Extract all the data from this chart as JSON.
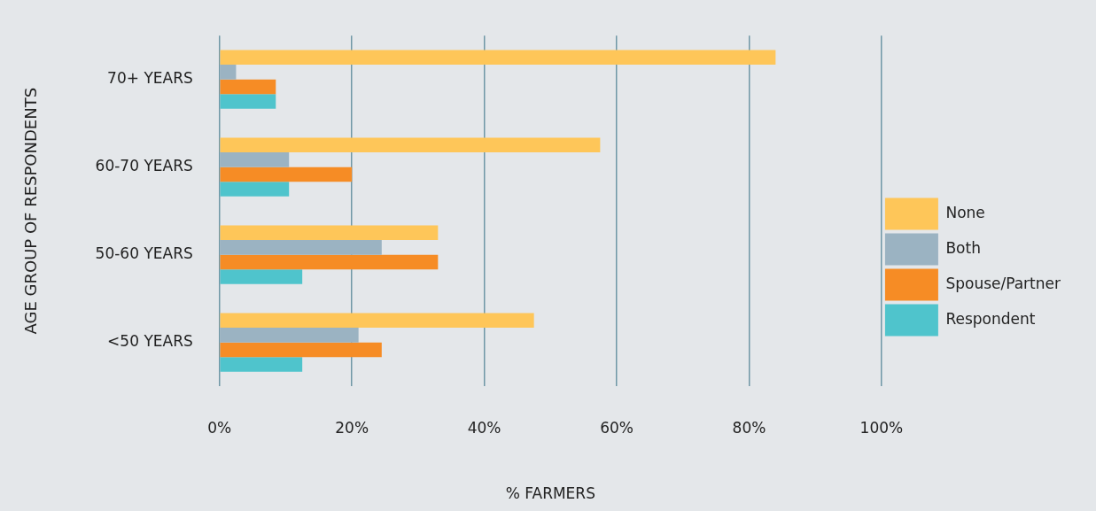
{
  "chart_data": {
    "type": "bar",
    "orientation": "horizontal",
    "xlabel": "% FARMERS",
    "ylabel": "AGE GROUP OF RESPONDENTS",
    "categories": [
      "70+ YEARS",
      "60-70 YEARS",
      "50-60 YEARS",
      "<50 YEARS"
    ],
    "series": [
      {
        "name": "None",
        "color": "#fec659",
        "values": [
          84,
          57.5,
          33,
          47.5
        ]
      },
      {
        "name": "Both",
        "color": "#9bb3c2",
        "values": [
          2.5,
          10.5,
          24.5,
          21
        ]
      },
      {
        "name": "Spouse/Partner",
        "color": "#f68c25",
        "values": [
          8.5,
          20,
          33,
          24.5
        ]
      },
      {
        "name": "Respondent",
        "color": "#4fc4cc",
        "values": [
          8.5,
          10.5,
          12.5,
          12.5
        ]
      }
    ],
    "xlim": [
      0,
      100
    ],
    "xticks": [
      {
        "value": 0,
        "label": "0%"
      },
      {
        "value": 20,
        "label": "20%"
      },
      {
        "value": 40,
        "label": "40%"
      },
      {
        "value": 60,
        "label": "60%"
      },
      {
        "value": 80,
        "label": "80%"
      },
      {
        "value": 100,
        "label": "100%"
      }
    ],
    "grid": "x",
    "legend": "right"
  }
}
